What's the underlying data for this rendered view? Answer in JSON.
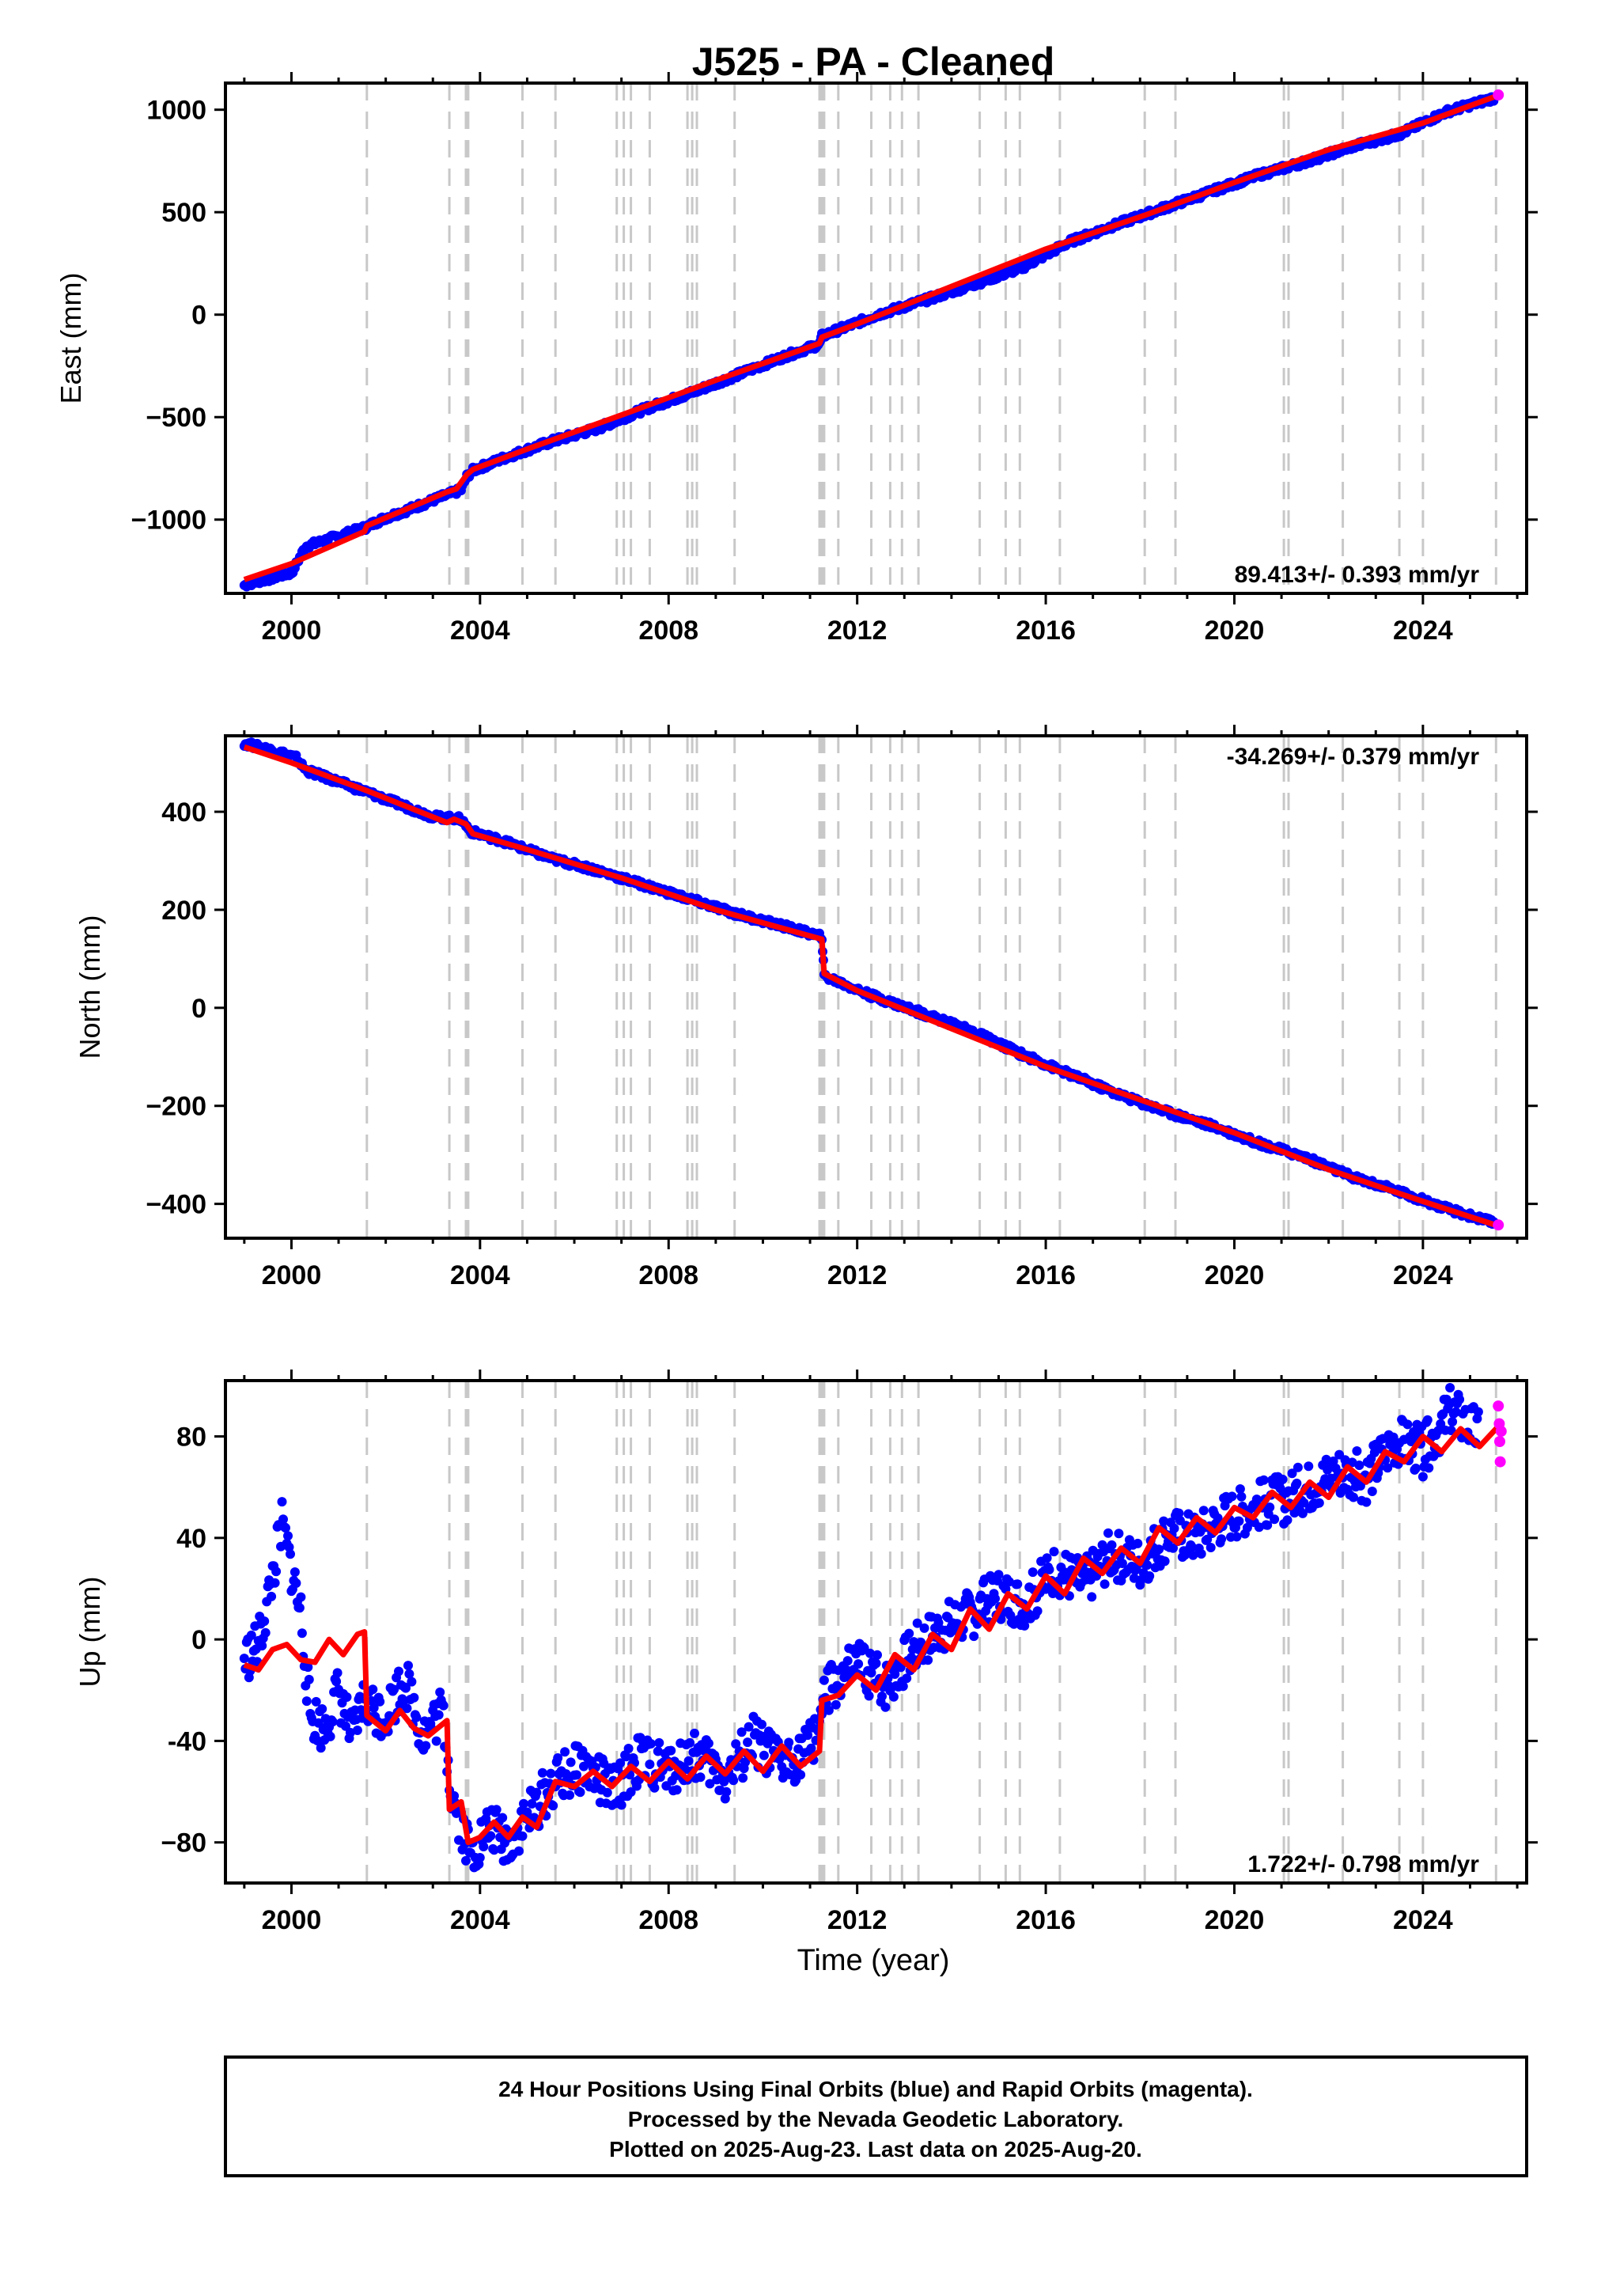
{
  "figure": {
    "title": "J525  - PA - Cleaned",
    "footer_lines": [
      "24 Hour Positions Using Final Orbits (blue) and Rapid Orbits (magenta).",
      "Processed by the Nevada Geodetic Laboratory.",
      "Plotted on 2025-Aug-23. Last data on 2025-Aug-20."
    ],
    "x_axis_label": "Time (year)"
  },
  "colors": {
    "final_orbits": "#0000ff",
    "rapid_orbits": "#ff00ff",
    "model": "#ff0000",
    "event_lines": "#c8c8c8",
    "frame": "#000000"
  },
  "chart_data": [
    {
      "type": "scatter",
      "name": "east",
      "ylabel": "East (mm)",
      "xlim": [
        1998.6,
        2026.2
      ],
      "ylim": [
        -1360,
        1130
      ],
      "x_ticks": [
        2000,
        2004,
        2008,
        2012,
        2016,
        2020,
        2024
      ],
      "y_ticks": [
        1000,
        500,
        0,
        -500,
        -1000
      ],
      "y_tick_labels": [
        "1000",
        "500",
        "0",
        "−500",
        "−1000"
      ],
      "rate_label": "89.413+/- 0.393 mm/yr",
      "rate_position": "bottom-right",
      "event_lines": [
        2001.6,
        2003.35,
        2003.7,
        2003.75,
        2004.9,
        2005.6,
        2006.9,
        2007.05,
        2007.2,
        2007.6,
        2008.4,
        2008.5,
        2008.6,
        2009.4,
        2011.2,
        2011.25,
        2011.3,
        2011.6,
        2012.3,
        2012.7,
        2012.95,
        2013.3,
        2014.6,
        2015.15,
        2015.45,
        2016.3,
        2018.1,
        2018.75,
        2021.05,
        2021.15,
        2022.3,
        2023.5,
        2024.0,
        2025.55
      ],
      "model": [
        [
          1999.0,
          -1293
        ],
        [
          2000.0,
          -1215
        ],
        [
          2001.55,
          -1058
        ],
        [
          2001.6,
          -1030
        ],
        [
          2003.3,
          -865
        ],
        [
          2003.5,
          -850
        ],
        [
          2003.72,
          -780
        ],
        [
          2003.85,
          -755
        ],
        [
          2005.0,
          -656
        ],
        [
          2007.0,
          -490
        ],
        [
          2009.0,
          -320
        ],
        [
          2011.2,
          -140
        ],
        [
          2011.25,
          -110
        ],
        [
          2012.0,
          -45
        ],
        [
          2016.0,
          320
        ],
        [
          2018.1,
          485
        ],
        [
          2020.0,
          645
        ],
        [
          2022.0,
          805
        ],
        [
          2024.0,
          935
        ],
        [
          2025.6,
          1070
        ]
      ],
      "points_final": [
        [
          1999.0,
          -1320
        ],
        [
          1999.2,
          -1305
        ],
        [
          1999.5,
          -1290
        ],
        [
          1999.8,
          -1270
        ],
        [
          2000.0,
          -1260
        ],
        [
          2000.05,
          -1240
        ],
        [
          2000.3,
          -1130
        ],
        [
          2000.6,
          -1110
        ],
        [
          2001.0,
          -1080
        ],
        [
          2001.55,
          -1040
        ],
        [
          2002.0,
          -990
        ],
        [
          2002.5,
          -950
        ],
        [
          2003.0,
          -905
        ],
        [
          2003.3,
          -880
        ],
        [
          2003.6,
          -855
        ],
        [
          2003.72,
          -790
        ],
        [
          2003.85,
          -760
        ],
        [
          2004.5,
          -700
        ],
        [
          2005.5,
          -620
        ],
        [
          2006.5,
          -555
        ],
        [
          2007.5,
          -460
        ],
        [
          2008.5,
          -380
        ],
        [
          2009.5,
          -290
        ],
        [
          2010.5,
          -200
        ],
        [
          2011.2,
          -145
        ],
        [
          2011.25,
          -105
        ],
        [
          2012.5,
          5
        ],
        [
          2013.5,
          75
        ],
        [
          2014.5,
          150
        ],
        [
          2015.5,
          230
        ],
        [
          2016.5,
          355
        ],
        [
          2017.5,
          440
        ],
        [
          2018.5,
          520
        ],
        [
          2019.5,
          600
        ],
        [
          2020.5,
          680
        ],
        [
          2021.5,
          745
        ],
        [
          2022.5,
          820
        ],
        [
          2023.5,
          880
        ],
        [
          2024.5,
          990
        ],
        [
          2025.55,
          1060
        ]
      ],
      "points_rapid": [
        [
          2025.6,
          1072
        ]
      ]
    },
    {
      "type": "scatter",
      "name": "north",
      "ylabel": "North (mm)",
      "xlim": [
        1998.6,
        2026.2
      ],
      "ylim": [
        -470,
        555
      ],
      "x_ticks": [
        2000,
        2004,
        2008,
        2012,
        2016,
        2020,
        2024
      ],
      "y_ticks": [
        400,
        200,
        0,
        -200,
        -400
      ],
      "y_tick_labels": [
        "400",
        "200",
        "0",
        "−200",
        "−400"
      ],
      "rate_label": "-34.269+/- 0.379 mm/yr",
      "rate_position": "top-right",
      "event_lines": [
        2001.6,
        2003.35,
        2003.7,
        2003.75,
        2004.9,
        2005.6,
        2006.9,
        2007.05,
        2007.2,
        2007.6,
        2008.4,
        2008.5,
        2008.6,
        2009.4,
        2011.2,
        2011.25,
        2011.3,
        2011.6,
        2012.3,
        2012.7,
        2012.95,
        2013.3,
        2014.6,
        2015.15,
        2015.45,
        2016.3,
        2018.1,
        2018.75,
        2021.05,
        2021.15,
        2022.3,
        2023.5,
        2024.0,
        2025.55
      ],
      "model": [
        [
          1999.0,
          532
        ],
        [
          2000.0,
          500
        ],
        [
          2001.6,
          443
        ],
        [
          2003.3,
          378
        ],
        [
          2003.45,
          385
        ],
        [
          2003.7,
          375
        ],
        [
          2003.85,
          355
        ],
        [
          2005.0,
          323
        ],
        [
          2007.0,
          265
        ],
        [
          2009.0,
          200
        ],
        [
          2011.25,
          140
        ],
        [
          2011.3,
          70
        ],
        [
          2012.0,
          35
        ],
        [
          2016.0,
          -120
        ],
        [
          2020.0,
          -255
        ],
        [
          2022.0,
          -330
        ],
        [
          2024.0,
          -395
        ],
        [
          2025.6,
          -445
        ]
      ],
      "points_final": [
        [
          1999.0,
          540
        ],
        [
          1999.4,
          530
        ],
        [
          1999.8,
          520
        ],
        [
          2000.1,
          510
        ],
        [
          2000.3,
          485
        ],
        [
          2000.8,
          468
        ],
        [
          2001.6,
          440
        ],
        [
          2002.3,
          415
        ],
        [
          2003.0,
          390
        ],
        [
          2003.4,
          387
        ],
        [
          2003.6,
          385
        ],
        [
          2003.8,
          360
        ],
        [
          2004.5,
          340
        ],
        [
          2005.5,
          305
        ],
        [
          2006.5,
          280
        ],
        [
          2007.5,
          250
        ],
        [
          2008.5,
          220
        ],
        [
          2009.5,
          190
        ],
        [
          2010.5,
          165
        ],
        [
          2011.25,
          145
        ],
        [
          2011.3,
          65
        ],
        [
          2012.3,
          25
        ],
        [
          2013.5,
          -15
        ],
        [
          2014.5,
          -50
        ],
        [
          2015.5,
          -95
        ],
        [
          2016.5,
          -135
        ],
        [
          2017.5,
          -175
        ],
        [
          2018.5,
          -210
        ],
        [
          2019.5,
          -240
        ],
        [
          2020.5,
          -275
        ],
        [
          2021.5,
          -305
        ],
        [
          2022.5,
          -345
        ],
        [
          2023.5,
          -375
        ],
        [
          2024.5,
          -410
        ],
        [
          2025.55,
          -440
        ]
      ],
      "points_rapid": [
        [
          2025.6,
          -443
        ]
      ]
    },
    {
      "type": "scatter",
      "name": "up",
      "ylabel": "Up (mm)",
      "xlim": [
        1998.6,
        2026.2
      ],
      "ylim": [
        -96,
        102
      ],
      "x_ticks": [
        2000,
        2004,
        2008,
        2012,
        2016,
        2020,
        2024
      ],
      "y_ticks": [
        80,
        40,
        0,
        -40,
        -80
      ],
      "y_tick_labels": [
        "80",
        "40",
        "0",
        "-40",
        "−80"
      ],
      "rate_label": "1.722+/- 0.798 mm/yr",
      "rate_position": "bottom-right",
      "event_lines": [
        2001.6,
        2003.35,
        2003.7,
        2003.75,
        2004.9,
        2005.6,
        2006.9,
        2007.05,
        2007.2,
        2007.6,
        2008.4,
        2008.5,
        2008.6,
        2009.4,
        2011.2,
        2011.25,
        2011.3,
        2011.6,
        2012.3,
        2012.7,
        2012.95,
        2013.3,
        2014.6,
        2015.15,
        2015.45,
        2016.3,
        2018.1,
        2018.75,
        2021.05,
        2021.15,
        2022.3,
        2023.5,
        2024.0,
        2025.55
      ],
      "model": [
        [
          1999.0,
          -10
        ],
        [
          1999.3,
          -12
        ],
        [
          1999.6,
          -4
        ],
        [
          1999.9,
          -2
        ],
        [
          2000.2,
          -8
        ],
        [
          2000.5,
          -9
        ],
        [
          2000.8,
          0
        ],
        [
          2001.1,
          -6
        ],
        [
          2001.4,
          2
        ],
        [
          2001.55,
          3
        ],
        [
          2001.6,
          -30
        ],
        [
          2002.0,
          -36
        ],
        [
          2002.3,
          -28
        ],
        [
          2002.6,
          -35
        ],
        [
          2002.9,
          -38
        ],
        [
          2003.3,
          -32
        ],
        [
          2003.35,
          -67
        ],
        [
          2003.6,
          -64
        ],
        [
          2003.75,
          -80
        ],
        [
          2004.0,
          -78
        ],
        [
          2004.3,
          -72
        ],
        [
          2004.6,
          -78
        ],
        [
          2004.9,
          -70
        ],
        [
          2005.2,
          -74
        ],
        [
          2005.6,
          -56
        ],
        [
          2006.0,
          -58
        ],
        [
          2006.4,
          -52
        ],
        [
          2006.8,
          -58
        ],
        [
          2007.2,
          -50
        ],
        [
          2007.6,
          -56
        ],
        [
          2008.0,
          -48
        ],
        [
          2008.4,
          -55
        ],
        [
          2008.8,
          -46
        ],
        [
          2009.2,
          -53
        ],
        [
          2009.6,
          -44
        ],
        [
          2010.0,
          -52
        ],
        [
          2010.4,
          -42
        ],
        [
          2010.8,
          -50
        ],
        [
          2011.2,
          -44
        ],
        [
          2011.25,
          -24
        ],
        [
          2011.6,
          -22
        ],
        [
          2012.0,
          -14
        ],
        [
          2012.4,
          -20
        ],
        [
          2012.8,
          -6
        ],
        [
          2013.2,
          -12
        ],
        [
          2013.6,
          2
        ],
        [
          2014.0,
          -4
        ],
        [
          2014.4,
          12
        ],
        [
          2014.8,
          4
        ],
        [
          2015.2,
          18
        ],
        [
          2015.6,
          12
        ],
        [
          2016.0,
          25
        ],
        [
          2016.4,
          18
        ],
        [
          2016.8,
          32
        ],
        [
          2017.2,
          26
        ],
        [
          2017.6,
          36
        ],
        [
          2018.0,
          30
        ],
        [
          2018.4,
          44
        ],
        [
          2018.8,
          38
        ],
        [
          2019.2,
          48
        ],
        [
          2019.6,
          42
        ],
        [
          2020.0,
          52
        ],
        [
          2020.4,
          48
        ],
        [
          2020.8,
          58
        ],
        [
          2021.2,
          52
        ],
        [
          2021.6,
          62
        ],
        [
          2022.0,
          56
        ],
        [
          2022.4,
          68
        ],
        [
          2022.8,
          62
        ],
        [
          2023.2,
          74
        ],
        [
          2023.6,
          70
        ],
        [
          2024.0,
          80
        ],
        [
          2024.4,
          74
        ],
        [
          2024.8,
          83
        ],
        [
          2025.2,
          76
        ],
        [
          2025.6,
          84
        ]
      ],
      "points_final": [
        [
          1999.0,
          -8
        ],
        [
          1999.3,
          -2
        ],
        [
          1999.5,
          15
        ],
        [
          1999.7,
          35
        ],
        [
          1999.8,
          45
        ],
        [
          2000.0,
          28
        ],
        [
          2000.2,
          10
        ],
        [
          2000.4,
          -30
        ],
        [
          2000.7,
          -35
        ],
        [
          2001.0,
          -20
        ],
        [
          2001.3,
          -40
        ],
        [
          2001.5,
          -25
        ],
        [
          2002.0,
          -30
        ],
        [
          2002.4,
          -15
        ],
        [
          2002.8,
          -38
        ],
        [
          2003.2,
          -28
        ],
        [
          2003.4,
          -60
        ],
        [
          2003.8,
          -85
        ],
        [
          2004.2,
          -74
        ],
        [
          2004.6,
          -80
        ],
        [
          2005.0,
          -70
        ],
        [
          2005.6,
          -56
        ],
        [
          2006.2,
          -50
        ],
        [
          2006.8,
          -60
        ],
        [
          2007.4,
          -47
        ],
        [
          2008.0,
          -52
        ],
        [
          2008.6,
          -45
        ],
        [
          2009.2,
          -55
        ],
        [
          2009.8,
          -40
        ],
        [
          2010.4,
          -50
        ],
        [
          2011.0,
          -42
        ],
        [
          2011.4,
          -20
        ],
        [
          2012.0,
          -10
        ],
        [
          2012.6,
          -18
        ],
        [
          2013.2,
          -4
        ],
        [
          2013.8,
          5
        ],
        [
          2014.4,
          10
        ],
        [
          2015.0,
          18
        ],
        [
          2015.6,
          14
        ],
        [
          2016.2,
          28
        ],
        [
          2016.8,
          22
        ],
        [
          2017.4,
          34
        ],
        [
          2018.0,
          30
        ],
        [
          2018.6,
          42
        ],
        [
          2019.2,
          40
        ],
        [
          2019.8,
          48
        ],
        [
          2020.4,
          52
        ],
        [
          2021.0,
          55
        ],
        [
          2021.6,
          60
        ],
        [
          2022.2,
          66
        ],
        [
          2022.8,
          64
        ],
        [
          2023.4,
          78
        ],
        [
          2024.0,
          74
        ],
        [
          2024.6,
          90
        ],
        [
          2025.2,
          80
        ]
      ],
      "points_rapid": [
        [
          2025.6,
          92
        ],
        [
          2025.62,
          85
        ],
        [
          2025.63,
          78
        ],
        [
          2025.64,
          70
        ],
        [
          2025.66,
          82
        ]
      ]
    }
  ]
}
